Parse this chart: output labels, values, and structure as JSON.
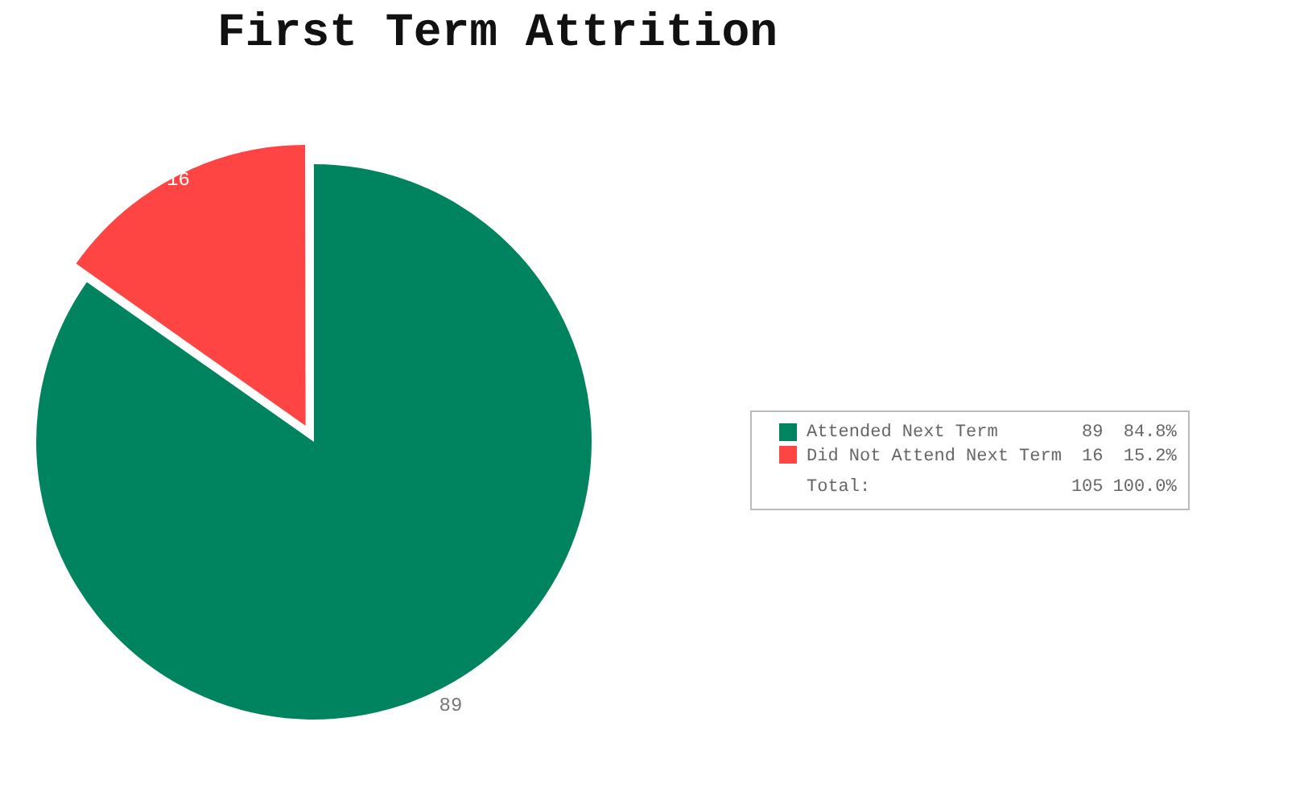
{
  "chart_data": {
    "type": "pie",
    "title": "First Term Attrition",
    "categories": [
      "Attended Next Term",
      "Did Not Attend Next Term"
    ],
    "values": [
      89,
      16
    ],
    "colors": [
      "#00845f",
      "#ff4444"
    ],
    "data_labels": true,
    "legend": "right",
    "annotations": [
      "89",
      "84.8%",
      "16",
      "15.2%",
      "Total:",
      "105",
      "100.0%"
    ]
  }
}
